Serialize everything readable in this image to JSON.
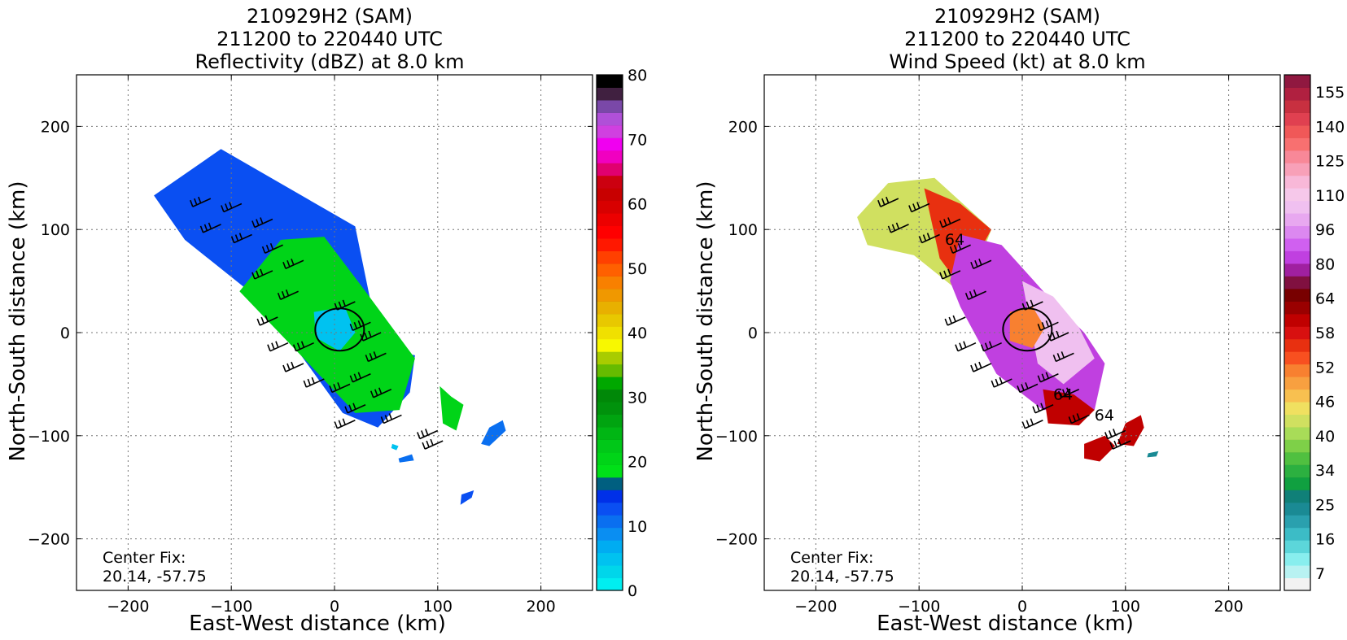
{
  "chart_data": [
    {
      "type": "heatmap",
      "title": [
        "210929H2 (SAM)",
        "211200 to 220440 UTC",
        "Reflectivity (dBZ) at 8.0 km"
      ],
      "xlabel": "East-West distance (km)",
      "ylabel": "North-South distance (km)",
      "xlim": [
        -250,
        250
      ],
      "ylim": [
        -250,
        250
      ],
      "x_ticks": [
        -200,
        -100,
        0,
        100,
        200
      ],
      "y_ticks": [
        -200,
        -100,
        0,
        100,
        200
      ],
      "x_tick_labels": [
        "−200",
        "−100",
        "0",
        "100",
        "200"
      ],
      "y_tick_labels": [
        "−200",
        "−100",
        "0",
        "100",
        "200"
      ],
      "grid": true,
      "annotation": [
        "Center Fix:",
        "20.14, -57.75"
      ],
      "colorbar": {
        "labels": [
          "0",
          "10",
          "20",
          "30",
          "40",
          "50",
          "60",
          "70",
          "80"
        ],
        "label_values": [
          0,
          10,
          20,
          30,
          40,
          50,
          60,
          70,
          80
        ],
        "colors": [
          "#00eef0",
          "#00d6ea",
          "#00c2f0",
          "#00acf2",
          "#0a8ef2",
          "#0a6ff0",
          "#0a4ff2",
          "#0030e8",
          "#005f80",
          "#00e018",
          "#00d418",
          "#00c818",
          "#00b614",
          "#00a410",
          "#00920c",
          "#008808",
          "#00a800",
          "#66bb00",
          "#a8cc00",
          "#f8f800",
          "#f0e000",
          "#e8c800",
          "#e8b000",
          "#f09800",
          "#f88000",
          "#ff6000",
          "#ff4000",
          "#ff1800",
          "#ff0000",
          "#ec0000",
          "#d80000",
          "#c80000",
          "#cc0010",
          "#e00070",
          "#f000c0",
          "#f000f0",
          "#d040e0",
          "#b050d8",
          "#7a48a8",
          "#402040",
          "#000000"
        ]
      },
      "series": [
        {
          "fill": "#0a4ff2",
          "polygon": [
            [
              -175,
              133
            ],
            [
              -110,
              178
            ],
            [
              20,
              103
            ],
            [
              35,
              30
            ],
            [
              60,
              -18
            ],
            [
              78,
              -22
            ],
            [
              73,
              -58
            ],
            [
              42,
              -92
            ],
            [
              8,
              -78
            ],
            [
              -70,
              30
            ],
            [
              -145,
              90
            ]
          ]
        },
        {
          "fill": "#00d418",
          "polygon": [
            [
              -52,
              90
            ],
            [
              -10,
              93
            ],
            [
              30,
              40
            ],
            [
              78,
              -25
            ],
            [
              63,
              -75
            ],
            [
              20,
              -78
            ],
            [
              -25,
              -30
            ],
            [
              -92,
              40
            ]
          ]
        },
        {
          "fill": "#00c2f0",
          "polygon": [
            [
              -20,
              20
            ],
            [
              10,
              25
            ],
            [
              20,
              0
            ],
            [
              5,
              -18
            ],
            [
              -18,
              -5
            ]
          ]
        },
        {
          "fill": "#00d418",
          "polygon": [
            [
              102,
              -52
            ],
            [
              113,
              -62
            ],
            [
              125,
              -70
            ],
            [
              118,
              -95
            ],
            [
              105,
              -88
            ]
          ]
        },
        {
          "fill": "#0a6ff0",
          "polygon": [
            [
              150,
              -92
            ],
            [
              163,
              -85
            ],
            [
              166,
              -95
            ],
            [
              150,
              -110
            ],
            [
              142,
              -108
            ]
          ]
        },
        {
          "fill": "#0a4ff2",
          "polygon": [
            [
              123,
              -157
            ],
            [
              135,
              -153
            ],
            [
              133,
              -160
            ],
            [
              122,
              -167
            ]
          ]
        },
        {
          "fill": "#00c2f0",
          "polygon": [
            [
              56,
              -108
            ],
            [
              62,
              -110
            ],
            [
              60,
              -114
            ],
            [
              55,
              -112
            ]
          ]
        },
        {
          "fill": "#0a6ff0",
          "polygon": [
            [
              62,
              -122
            ],
            [
              75,
              -118
            ],
            [
              77,
              -124
            ],
            [
              63,
              -126
            ]
          ]
        }
      ]
    },
    {
      "type": "heatmap",
      "title": [
        "210929H2 (SAM)",
        "211200 to 220440 UTC",
        "Wind Speed (kt) at 8.0 km"
      ],
      "xlabel": "East-West distance (km)",
      "ylabel": "North-South distance (km)",
      "xlim": [
        -250,
        250
      ],
      "ylim": [
        -250,
        250
      ],
      "x_ticks": [
        -200,
        -100,
        0,
        100,
        200
      ],
      "y_ticks": [
        -200,
        -100,
        0,
        100,
        200
      ],
      "x_tick_labels": [
        "−200",
        "−100",
        "0",
        "100",
        "200"
      ],
      "y_tick_labels": [
        "−200",
        "−100",
        "0",
        "100",
        "200"
      ],
      "grid": true,
      "annotation": [
        "Center Fix:",
        "20.14, -57.75"
      ],
      "contour_labels": [
        "64",
        "64",
        "64"
      ],
      "colorbar": {
        "labels": [
          "7",
          "16",
          "25",
          "34",
          "40",
          "46",
          "52",
          "58",
          "64",
          "80",
          "96",
          "110",
          "125",
          "140",
          "155"
        ],
        "label_values": [
          7,
          16,
          25,
          34,
          40,
          46,
          52,
          58,
          64,
          80,
          96,
          110,
          125,
          140,
          155
        ],
        "colors": [
          "#f2f2f2",
          "#b8f2f2",
          "#88eeee",
          "#5cd6da",
          "#3cbcc6",
          "#2aa0ae",
          "#1a8a94",
          "#108078",
          "#10a040",
          "#2cb040",
          "#50c040",
          "#7ed048",
          "#a8dc58",
          "#d0e060",
          "#f0e060",
          "#f8c050",
          "#f8a040",
          "#f88030",
          "#f85020",
          "#e83010",
          "#d81010",
          "#c00000",
          "#9a0000",
          "#780000",
          "#801040",
          "#a020a0",
          "#c040e0",
          "#d060f0",
          "#dc88f0",
          "#e8a8f0",
          "#f0c0f0",
          "#f6c8ea",
          "#f8b8d8",
          "#f8a0b8",
          "#f88898",
          "#f87070",
          "#f05858",
          "#e04050",
          "#c83040",
          "#b02040",
          "#901840"
        ]
      },
      "series": [
        {
          "fill": "#d0e060",
          "polygon": [
            [
              -160,
              112
            ],
            [
              -130,
              145
            ],
            [
              -85,
              150
            ],
            [
              -30,
              100
            ],
            [
              -55,
              35
            ],
            [
              -105,
              75
            ],
            [
              -150,
              85
            ]
          ]
        },
        {
          "fill": "#e83010",
          "polygon": [
            [
              -95,
              140
            ],
            [
              -60,
              125
            ],
            [
              -30,
              100
            ],
            [
              -60,
              45
            ],
            [
              -80,
              72
            ]
          ]
        },
        {
          "fill": "#c040e0",
          "polygon": [
            [
              -60,
              95
            ],
            [
              -20,
              85
            ],
            [
              25,
              35
            ],
            [
              60,
              0
            ],
            [
              80,
              -30
            ],
            [
              70,
              -75
            ],
            [
              20,
              -75
            ],
            [
              -25,
              -40
            ],
            [
              -60,
              25
            ],
            [
              -70,
              50
            ]
          ]
        },
        {
          "fill": "#f0c0f0",
          "polygon": [
            [
              0,
              50
            ],
            [
              30,
              35
            ],
            [
              55,
              5
            ],
            [
              70,
              -25
            ],
            [
              40,
              -50
            ],
            [
              15,
              -30
            ]
          ]
        },
        {
          "fill": "#c00000",
          "polygon": [
            [
              20,
              -55
            ],
            [
              50,
              -60
            ],
            [
              70,
              -75
            ],
            [
              55,
              -90
            ],
            [
              25,
              -88
            ]
          ]
        },
        {
          "fill": "#f88030",
          "polygon": [
            [
              -12,
              20
            ],
            [
              10,
              25
            ],
            [
              22,
              5
            ],
            [
              10,
              -15
            ],
            [
              -12,
              -8
            ]
          ]
        },
        {
          "fill": "#c00000",
          "polygon": [
            [
              100,
              -88
            ],
            [
              115,
              -80
            ],
            [
              118,
              -92
            ],
            [
              108,
              -110
            ],
            [
              92,
              -108
            ]
          ]
        },
        {
          "fill": "#c00000",
          "polygon": [
            [
              60,
              -108
            ],
            [
              80,
              -100
            ],
            [
              90,
              -110
            ],
            [
              75,
              -125
            ],
            [
              60,
              -122
            ]
          ]
        },
        {
          "fill": "#1a8a94",
          "polygon": [
            [
              122,
              -117
            ],
            [
              132,
              -115
            ],
            [
              130,
              -120
            ],
            [
              121,
              -121
            ]
          ]
        }
      ]
    }
  ]
}
